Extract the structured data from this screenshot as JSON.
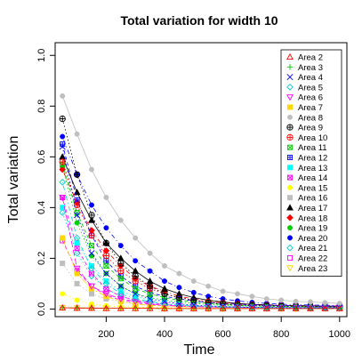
{
  "chart_data": {
    "type": "scatter",
    "title": "Total variation for width 10",
    "xlabel": "Time",
    "ylabel": "Total variation",
    "xlim": [
      25,
      1025
    ],
    "ylim": [
      -0.03,
      1.05
    ],
    "xticks": [
      200,
      400,
      600,
      800,
      1000
    ],
    "yticks": [
      0.0,
      0.2,
      0.4,
      0.6,
      0.8,
      1.0
    ],
    "ytick_labels": [
      "0.0",
      "0.2",
      "0.4",
      "0.6",
      "0.8",
      "1.0"
    ],
    "x": [
      50,
      100,
      150,
      200,
      250,
      300,
      350,
      400,
      450,
      500,
      550,
      600,
      650,
      700,
      750,
      800,
      850,
      900,
      950,
      1000
    ],
    "grid": false,
    "legend_position": "top-right",
    "series": [
      {
        "name": "Area 2",
        "color": "#ff0000",
        "marker": "triangle-open",
        "line": "solid",
        "values": [
          0.005,
          0.004,
          0.004,
          0.003,
          0.003,
          0.003,
          0.003,
          0.002,
          0.002,
          0.002,
          0.002,
          0.002,
          0.002,
          0.002,
          0.002,
          0.002,
          0.002,
          0.002,
          0.002,
          0.002
        ]
      },
      {
        "name": "Area 3",
        "color": "#00cd00",
        "marker": "plus",
        "line": "dashed",
        "values": [
          0.005,
          0.004,
          0.004,
          0.003,
          0.003,
          0.003,
          0.003,
          0.002,
          0.002,
          0.002,
          0.002,
          0.002,
          0.002,
          0.002,
          0.002,
          0.002,
          0.002,
          0.002,
          0.002,
          0.002
        ]
      },
      {
        "name": "Area 4",
        "color": "#0000ff",
        "marker": "cross",
        "line": "dotted",
        "values": [
          0.64,
          0.37,
          0.22,
          0.14,
          0.09,
          0.06,
          0.04,
          0.03,
          0.02,
          0.015,
          0.012,
          0.01,
          0.008,
          0.007,
          0.006,
          0.006,
          0.005,
          0.005,
          0.005,
          0.005
        ]
      },
      {
        "name": "Area 5",
        "color": "#00cdcd",
        "marker": "diamond-open",
        "line": "dotdash",
        "values": [
          0.5,
          0.28,
          0.16,
          0.1,
          0.06,
          0.04,
          0.03,
          0.02,
          0.015,
          0.012,
          0.01,
          0.008,
          0.007,
          0.006,
          0.005,
          0.005,
          0.005,
          0.004,
          0.004,
          0.004
        ]
      },
      {
        "name": "Area 6",
        "color": "#ff00ff",
        "marker": "triangle-down-open",
        "line": "longdash",
        "values": [
          0.44,
          0.16,
          0.09,
          0.06,
          0.04,
          0.03,
          0.02,
          0.015,
          0.012,
          0.01,
          0.008,
          0.007,
          0.006,
          0.006,
          0.005,
          0.005,
          0.005,
          0.004,
          0.004,
          0.004
        ]
      },
      {
        "name": "Area 7",
        "color": "#ffd700",
        "marker": "square-filled",
        "line": "twodash",
        "values": [
          0.28,
          0.14,
          0.08,
          0.05,
          0.03,
          0.02,
          0.015,
          0.012,
          0.01,
          0.008,
          0.007,
          0.006,
          0.005,
          0.005,
          0.004,
          0.004,
          0.004,
          0.004,
          0.004,
          0.004
        ]
      },
      {
        "name": "Area 8",
        "color": "#bebebe",
        "marker": "circle-filled",
        "line": "solid",
        "values": [
          0.84,
          0.69,
          0.55,
          0.44,
          0.35,
          0.28,
          0.22,
          0.17,
          0.14,
          0.11,
          0.09,
          0.07,
          0.06,
          0.05,
          0.04,
          0.035,
          0.03,
          0.028,
          0.025,
          0.022
        ]
      },
      {
        "name": "Area 9",
        "color": "#000000",
        "marker": "circle-plus",
        "line": "dotted",
        "values": [
          0.75,
          0.53,
          0.37,
          0.26,
          0.18,
          0.13,
          0.09,
          0.06,
          0.045,
          0.035,
          0.025,
          0.02,
          0.016,
          0.014,
          0.012,
          0.011,
          0.01,
          0.009,
          0.009,
          0.008
        ]
      },
      {
        "name": "Area 10",
        "color": "#ff0000",
        "marker": "circle-plus",
        "line": "dotted",
        "values": [
          0.58,
          0.41,
          0.29,
          0.21,
          0.15,
          0.11,
          0.08,
          0.06,
          0.045,
          0.035,
          0.028,
          0.022,
          0.018,
          0.015,
          0.013,
          0.012,
          0.011,
          0.01,
          0.01,
          0.009
        ]
      },
      {
        "name": "Area 11",
        "color": "#00cd00",
        "marker": "square-cross",
        "line": "dashed",
        "values": [
          0.57,
          0.38,
          0.25,
          0.17,
          0.12,
          0.08,
          0.06,
          0.045,
          0.035,
          0.027,
          0.022,
          0.018,
          0.015,
          0.013,
          0.012,
          0.011,
          0.01,
          0.009,
          0.009,
          0.008
        ]
      },
      {
        "name": "Area 12",
        "color": "#0000ff",
        "marker": "square-plus",
        "line": "dashed",
        "values": [
          0.65,
          0.43,
          0.29,
          0.19,
          0.13,
          0.09,
          0.065,
          0.05,
          0.04,
          0.032,
          0.026,
          0.022,
          0.019,
          0.017,
          0.015,
          0.014,
          0.013,
          0.012,
          0.012,
          0.011
        ]
      },
      {
        "name": "Area 13",
        "color": "#00ffff",
        "marker": "square-filled",
        "line": "dotted",
        "values": [
          0.4,
          0.26,
          0.17,
          0.11,
          0.07,
          0.05,
          0.035,
          0.025,
          0.02,
          0.016,
          0.013,
          0.011,
          0.01,
          0.009,
          0.008,
          0.008,
          0.007,
          0.007,
          0.007,
          0.006
        ]
      },
      {
        "name": "Area 14",
        "color": "#ff00ff",
        "marker": "square-cross",
        "line": "dashed",
        "values": [
          0.44,
          0.24,
          0.14,
          0.08,
          0.05,
          0.035,
          0.025,
          0.018,
          0.014,
          0.011,
          0.009,
          0.008,
          0.007,
          0.006,
          0.006,
          0.005,
          0.005,
          0.005,
          0.005,
          0.005
        ]
      },
      {
        "name": "Area 15",
        "color": "#ffff00",
        "marker": "circle-filled",
        "line": "dotted",
        "values": [
          0.06,
          0.035,
          0.02,
          0.013,
          0.009,
          0.007,
          0.006,
          0.005,
          0.004,
          0.004,
          0.004,
          0.003,
          0.003,
          0.003,
          0.003,
          0.003,
          0.003,
          0.003,
          0.003,
          0.003
        ]
      },
      {
        "name": "Area 16",
        "color": "#bebebe",
        "marker": "square-filled",
        "line": "dotted",
        "values": [
          0.18,
          0.1,
          0.06,
          0.04,
          0.03,
          0.02,
          0.015,
          0.012,
          0.01,
          0.009,
          0.008,
          0.007,
          0.006,
          0.006,
          0.005,
          0.005,
          0.005,
          0.005,
          0.005,
          0.005
        ]
      },
      {
        "name": "Area 17",
        "color": "#000000",
        "marker": "triangle-filled",
        "line": "solid",
        "values": [
          0.6,
          0.46,
          0.35,
          0.26,
          0.2,
          0.15,
          0.11,
          0.08,
          0.06,
          0.045,
          0.035,
          0.028,
          0.022,
          0.018,
          0.016,
          0.014,
          0.013,
          0.012,
          0.011,
          0.011
        ]
      },
      {
        "name": "Area 18",
        "color": "#ff0000",
        "marker": "diamond-filled",
        "line": "dotdash",
        "values": [
          0.55,
          0.42,
          0.31,
          0.23,
          0.17,
          0.12,
          0.09,
          0.07,
          0.05,
          0.04,
          0.032,
          0.026,
          0.022,
          0.019,
          0.017,
          0.015,
          0.014,
          0.013,
          0.012,
          0.012
        ]
      },
      {
        "name": "Area 19",
        "color": "#00cd00",
        "marker": "circle-filled",
        "line": "dotted",
        "values": [
          0.56,
          0.34,
          0.21,
          0.14,
          0.09,
          0.06,
          0.045,
          0.035,
          0.028,
          0.022,
          0.018,
          0.015,
          0.013,
          0.012,
          0.011,
          0.01,
          0.009,
          0.009,
          0.008,
          0.008
        ]
      },
      {
        "name": "Area 20",
        "color": "#0000ff",
        "marker": "circle-filled",
        "line": "dotdash",
        "values": [
          0.68,
          0.53,
          0.41,
          0.32,
          0.25,
          0.19,
          0.15,
          0.11,
          0.085,
          0.065,
          0.05,
          0.04,
          0.032,
          0.026,
          0.022,
          0.019,
          0.017,
          0.016,
          0.015,
          0.014
        ]
      },
      {
        "name": "Area 21",
        "color": "#00cdcd",
        "marker": "diamond-open",
        "line": "dotted",
        "values": [
          0.38,
          0.22,
          0.13,
          0.08,
          0.05,
          0.035,
          0.025,
          0.018,
          0.014,
          0.011,
          0.009,
          0.008,
          0.007,
          0.006,
          0.006,
          0.005,
          0.005,
          0.005,
          0.005,
          0.005
        ]
      },
      {
        "name": "Area 22",
        "color": "#ff00ff",
        "marker": "square-open",
        "line": "dashed",
        "values": [
          0.27,
          0.15,
          0.09,
          0.055,
          0.035,
          0.025,
          0.018,
          0.014,
          0.011,
          0.009,
          0.008,
          0.007,
          0.006,
          0.006,
          0.005,
          0.005,
          0.005,
          0.005,
          0.005,
          0.005
        ]
      },
      {
        "name": "Area 23",
        "color": "#ffd700",
        "marker": "triangle-down-open",
        "line": "solid",
        "values": [
          0.005,
          0.004,
          0.004,
          0.003,
          0.003,
          0.003,
          0.003,
          0.002,
          0.002,
          0.002,
          0.002,
          0.002,
          0.002,
          0.002,
          0.002,
          0.002,
          0.002,
          0.002,
          0.002,
          0.002
        ]
      }
    ]
  }
}
